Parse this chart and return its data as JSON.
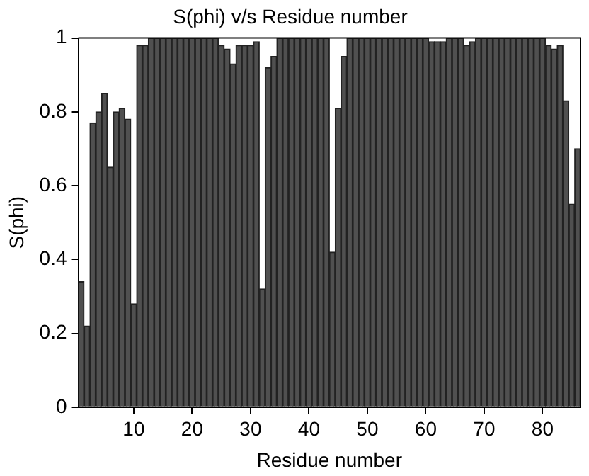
{
  "chart_data": {
    "type": "bar",
    "title": "S(phi) v/s Residue number",
    "xlabel": "Residue number",
    "ylabel": "S(phi)",
    "x": [
      1,
      2,
      3,
      4,
      5,
      6,
      7,
      8,
      9,
      10,
      11,
      12,
      13,
      14,
      15,
      16,
      17,
      18,
      19,
      20,
      21,
      22,
      23,
      24,
      25,
      26,
      27,
      28,
      29,
      30,
      31,
      32,
      33,
      34,
      35,
      36,
      37,
      38,
      39,
      40,
      41,
      42,
      43,
      44,
      45,
      46,
      47,
      48,
      49,
      50,
      51,
      52,
      53,
      54,
      55,
      56,
      57,
      58,
      59,
      60,
      61,
      62,
      63,
      64,
      65,
      66,
      67,
      68,
      69,
      70,
      71,
      72,
      73,
      74,
      75,
      76,
      77,
      78,
      79,
      80,
      81,
      82,
      83,
      84,
      85,
      86
    ],
    "values": [
      0.34,
      0.22,
      0.77,
      0.8,
      0.85,
      0.65,
      0.8,
      0.81,
      0.78,
      0.28,
      0.98,
      0.98,
      1,
      1,
      1,
      1,
      1,
      1,
      1,
      1,
      1,
      1,
      1,
      1,
      0.98,
      0.97,
      0.93,
      0.98,
      0.98,
      0.98,
      0.99,
      0.32,
      0.92,
      0.95,
      1,
      1,
      1,
      1,
      1,
      1,
      1,
      1,
      1,
      0.42,
      0.81,
      0.95,
      1,
      1,
      1,
      1,
      1,
      1,
      1,
      1,
      1,
      1,
      1,
      1,
      1,
      1,
      0.99,
      0.99,
      0.99,
      1,
      1,
      1,
      0.98,
      0.99,
      1,
      1,
      1,
      1,
      1,
      1,
      1,
      1,
      1,
      1,
      1,
      1,
      0.98,
      0.97,
      0.98,
      0.83,
      0.55,
      0.7
    ],
    "color": "#505050",
    "xlim": [
      0.5,
      86.5
    ],
    "xticks": [
      10,
      20,
      30,
      40,
      50,
      60,
      70,
      80
    ],
    "ylim": [
      0,
      1
    ],
    "yticks": [
      0,
      0.2,
      0.4,
      0.6,
      0.8,
      1
    ],
    "grid": false,
    "legend": false
  }
}
